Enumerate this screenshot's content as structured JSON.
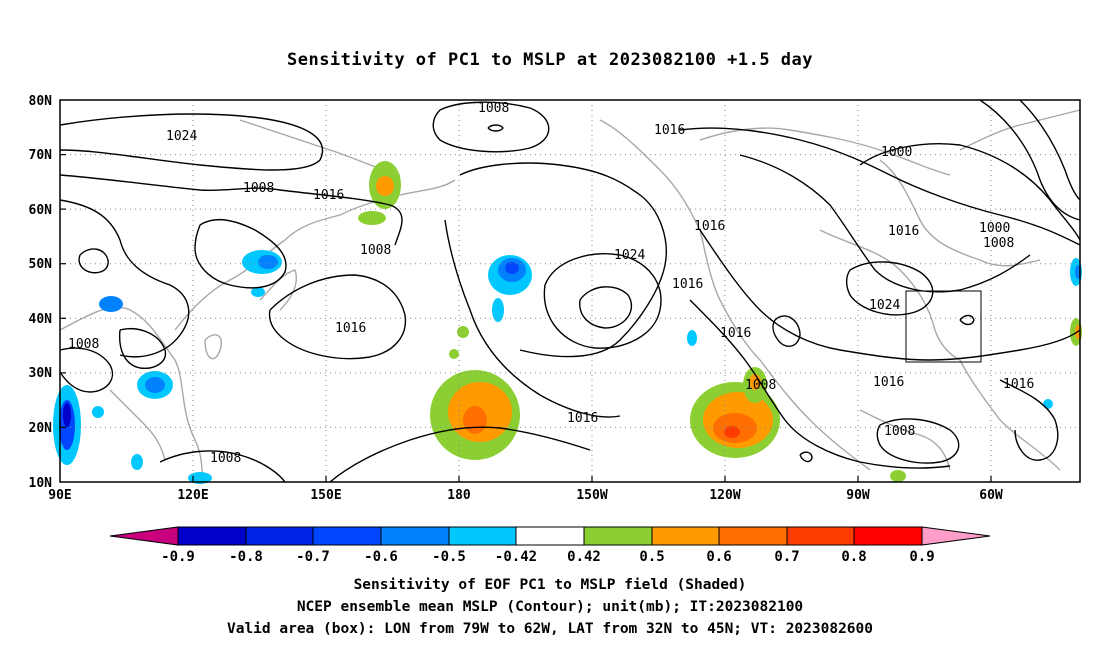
{
  "title": "Sensitivity of PC1 to MSLP at 2023082100 +1.5 day",
  "map": {
    "lon_labels": [
      "90E",
      "120E",
      "150E",
      "180",
      "150W",
      "120W",
      "90W",
      "60W"
    ],
    "lat_labels": [
      "80N",
      "70N",
      "60N",
      "50N",
      "40N",
      "30N",
      "20N",
      "10N"
    ],
    "contour_labels": [
      "1008",
      "1024",
      "1016",
      "1008",
      "1016",
      "1008",
      "1008",
      "1016",
      "1024",
      "1016",
      "1016",
      "1000",
      "1016",
      "1000",
      "1008",
      "1024",
      "1016",
      "1008",
      "1016",
      "1016",
      "1016",
      "1008",
      "1008"
    ],
    "valid_box": {
      "lon_from": "79W",
      "lon_to": "62W",
      "lat_from": "32N",
      "lat_to": "45N"
    }
  },
  "colorbar": {
    "labels": [
      "-0.9",
      "-0.8",
      "-0.7",
      "-0.6",
      "-0.5",
      "-0.42",
      "0.42",
      "0.5",
      "0.6",
      "0.7",
      "0.8",
      "0.9"
    ],
    "colors": [
      "#c8007e",
      "#0000c8",
      "#0025e6",
      "#0046ff",
      "#0082ff",
      "#00c8ff",
      "#ffffff",
      "#8ccf32",
      "#ff9b00",
      "#ff6e00",
      "#ff3c00",
      "#ff0000",
      "#ff9ec8"
    ]
  },
  "captions": {
    "line1": "Sensitivity of EOF PC1 to MSLP field (Shaded)",
    "line2": "NCEP ensemble mean MSLP (Contour); unit(mb); IT:2023082100",
    "line3": "Valid area (box): LON from 79W to 62W, LAT from 32N to 45N; VT: 2023082600"
  }
}
